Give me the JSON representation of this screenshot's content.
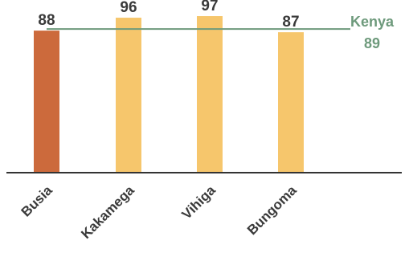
{
  "chart_data": {
    "type": "bar",
    "categories": [
      "Busia",
      "Kakamega",
      "Vihiga",
      "Bungoma"
    ],
    "values": [
      88,
      96,
      97,
      87
    ],
    "data_labels": [
      "88",
      "96",
      "97",
      "87"
    ],
    "colors": [
      "#cc6a3c",
      "#f6c66c",
      "#f6c66c",
      "#f6c66c"
    ],
    "reference_line": {
      "name": "Kenya",
      "value": 89,
      "value_label": "89",
      "color": "#6e9a7c"
    },
    "axis_color": "#333333",
    "title": "",
    "xlabel": "",
    "ylabel": "",
    "ylim": [
      0,
      100
    ],
    "grid": false,
    "legend": "none"
  }
}
